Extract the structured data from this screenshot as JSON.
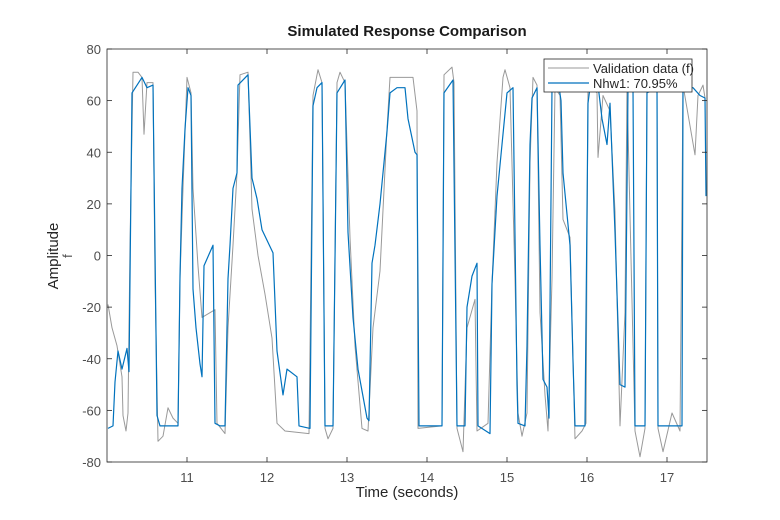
{
  "chart_data": {
    "type": "line",
    "title": "Simulated Response Comparison",
    "xlabel": "Time (seconds)",
    "ylabel": "Amplitude",
    "ylabel_sub": "f",
    "xlim": [
      10,
      17.5
    ],
    "ylim": [
      -80,
      80
    ],
    "xticks": [
      11,
      12,
      13,
      14,
      15,
      16,
      17
    ],
    "yticks": [
      -80,
      -60,
      -40,
      -20,
      0,
      20,
      40,
      60,
      80
    ],
    "grid": false,
    "legend_placement": "top-right",
    "series": [
      {
        "name": "Validation data (f)",
        "color": "#999999",
        "x": [
          10.013,
          10.063,
          10.125,
          10.188,
          10.2,
          10.238,
          10.263,
          10.288,
          10.325,
          10.388,
          10.438,
          10.463,
          10.5,
          10.575,
          10.6,
          10.638,
          10.7,
          10.763,
          10.825,
          10.888,
          10.913,
          10.95,
          11.0,
          11.05,
          11.075,
          11.138,
          11.188,
          11.35,
          11.375,
          11.475,
          11.513,
          11.575,
          11.625,
          11.663,
          11.763,
          11.813,
          11.888,
          11.975,
          12.063,
          12.125,
          12.225,
          12.525,
          12.575,
          12.638,
          12.688,
          12.725,
          12.763,
          12.825,
          12.875,
          12.913,
          12.975,
          13.038,
          13.1,
          13.188,
          13.263,
          13.325,
          13.413,
          13.5,
          13.538,
          13.825,
          13.875,
          13.888,
          14.188,
          14.213,
          14.313,
          14.338,
          14.375,
          14.45,
          14.5,
          14.6,
          14.625,
          14.763,
          14.813,
          14.875,
          14.95,
          14.975,
          15.038,
          15.1,
          15.138,
          15.188,
          15.25,
          15.288,
          15.325,
          15.375,
          15.413,
          15.475,
          15.513,
          15.563,
          15.6,
          15.663,
          15.7,
          15.788,
          15.85,
          15.938,
          15.988,
          16.013,
          16.125,
          16.138,
          16.2,
          16.288,
          16.35,
          16.413,
          16.475,
          16.5,
          16.6,
          16.663,
          16.725,
          16.75,
          16.875,
          16.888,
          16.95,
          17.063,
          17.163,
          17.2,
          17.35,
          17.388,
          17.45,
          17.475
        ],
        "y": [
          -19,
          -28,
          -35,
          -47,
          -62,
          -68,
          -61,
          4,
          71,
          71,
          69,
          47,
          67,
          67,
          -9,
          -72,
          -70,
          -59,
          -63,
          -65,
          -9,
          26,
          69,
          63,
          26,
          -4,
          -24,
          -21,
          -65,
          -69,
          -28,
          4,
          32,
          70,
          71,
          18,
          0,
          -15,
          -32,
          -65,
          -68,
          -69,
          62,
          72,
          67,
          -67,
          -71,
          -67,
          67,
          71,
          67,
          7,
          -35,
          -67,
          -68,
          -28,
          -6,
          49,
          69,
          69,
          56,
          -67,
          -66,
          70,
          73,
          67,
          -67,
          -76,
          -28,
          -17,
          -68,
          -65,
          -11,
          36,
          69,
          72,
          65,
          -9,
          -61,
          -70,
          -61,
          36,
          69,
          66,
          -22,
          -54,
          -68,
          -9,
          65,
          62,
          14,
          7,
          -71,
          -68,
          -65,
          66,
          63,
          38,
          62,
          56,
          17,
          -66,
          -22,
          66,
          -68,
          -78,
          -67,
          69,
          66,
          -67,
          -76,
          -61,
          -68,
          66,
          39,
          62,
          66,
          61
        ]
      },
      {
        "name": "Nhw1: 70.95%",
        "color": "#0072BD",
        "x": [
          10.013,
          10.075,
          10.1,
          10.138,
          10.188,
          10.25,
          10.275,
          10.313,
          10.438,
          10.5,
          10.575,
          10.625,
          10.663,
          10.888,
          10.913,
          10.938,
          10.975,
          11.013,
          11.05,
          11.075,
          11.113,
          11.163,
          11.188,
          11.213,
          11.325,
          11.35,
          11.413,
          11.475,
          11.513,
          11.538,
          11.575,
          11.625,
          11.638,
          11.763,
          11.813,
          11.875,
          11.938,
          12.075,
          12.125,
          12.2,
          12.25,
          12.375,
          12.4,
          12.538,
          12.575,
          12.625,
          12.688,
          12.725,
          12.825,
          12.875,
          12.975,
          13.013,
          13.075,
          13.138,
          13.25,
          13.275,
          13.313,
          13.35,
          13.413,
          13.5,
          13.538,
          13.625,
          13.725,
          13.763,
          13.85,
          13.875,
          13.9,
          14.188,
          14.213,
          14.325,
          14.375,
          14.475,
          14.5,
          14.563,
          14.625,
          14.638,
          14.788,
          14.813,
          14.875,
          14.938,
          15.0,
          15.075,
          15.125,
          15.138,
          15.225,
          15.25,
          15.288,
          15.313,
          15.375,
          15.413,
          15.45,
          15.5,
          15.525,
          15.563,
          15.638,
          15.675,
          15.7,
          15.788,
          15.825,
          15.85,
          15.975,
          16.013,
          16.038,
          16.138,
          16.188,
          16.25,
          16.288,
          16.35,
          16.413,
          16.475,
          16.513,
          16.575,
          16.6,
          16.725,
          16.75,
          16.875,
          16.888,
          17.188,
          17.2,
          17.325,
          17.413,
          17.475,
          17.488
        ],
        "y": [
          -67,
          -66,
          -49,
          -37,
          -44,
          -36,
          -45,
          63,
          69,
          65,
          66,
          -62,
          -66,
          -66,
          -8,
          26,
          49,
          65,
          62,
          -13,
          -28,
          -42,
          -47,
          -4,
          4,
          -65,
          -66,
          -66,
          -9,
          4,
          26,
          32,
          66,
          70,
          30,
          22,
          10,
          1,
          -37,
          -54,
          -44,
          -47,
          -66,
          -67,
          58,
          65,
          67,
          -66,
          -66,
          63,
          68,
          9,
          -24,
          -44,
          -63,
          -64,
          -3,
          4,
          20,
          48,
          63,
          65,
          65,
          53,
          40,
          39,
          -66,
          -66,
          63,
          68,
          -66,
          -66,
          -20,
          -8,
          -3,
          -66,
          -69,
          -11,
          23,
          43,
          63,
          65,
          -50,
          -65,
          -66,
          -35,
          43,
          61,
          65,
          4,
          -48,
          -51,
          -63,
          65,
          68,
          60,
          32,
          4,
          -41,
          -66,
          -66,
          59,
          65,
          66,
          53,
          43,
          59,
          9,
          -50,
          -51,
          65,
          65,
          -66,
          -66,
          63,
          65,
          -66,
          -66,
          65,
          65,
          62,
          61,
          23
        ]
      }
    ]
  }
}
